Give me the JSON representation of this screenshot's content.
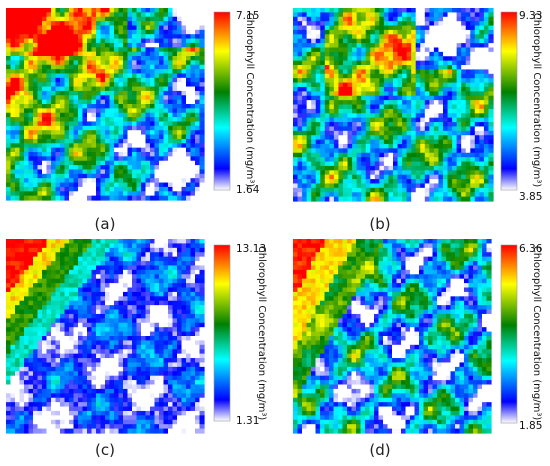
{
  "chart_data": [
    {
      "type": "heatmap",
      "caption": "(a)",
      "colorbar": {
        "label": "Chlorophyll Concentration (mg/m³)",
        "min": 1.64,
        "max": 7.15,
        "min_label": "1.64",
        "max_label": "7.15"
      }
    },
    {
      "type": "heatmap",
      "caption": "(b)",
      "colorbar": {
        "label": "Chlorophyll Concentration (mg/m³)",
        "min": 3.85,
        "max": 9.33,
        "min_label": "3.85",
        "max_label": "9.33"
      }
    },
    {
      "type": "heatmap",
      "caption": "(c)",
      "colorbar": {
        "label": "Chlorophyll Concentration (mg/m³)",
        "min": 1.31,
        "max": 13.13,
        "min_label": "1.31",
        "max_label": "13.13"
      }
    },
    {
      "type": "heatmap",
      "caption": "(d)",
      "colorbar": {
        "label": "Chlorophyll Concentration (mg/m³)",
        "min": 1.85,
        "max": 6.36,
        "min_label": "1.85",
        "max_label": "6.36"
      }
    }
  ],
  "colormap": [
    "#ffffff",
    "#0000ff",
    "#00ffff",
    "#008000",
    "#ffff00",
    "#ff0000"
  ]
}
